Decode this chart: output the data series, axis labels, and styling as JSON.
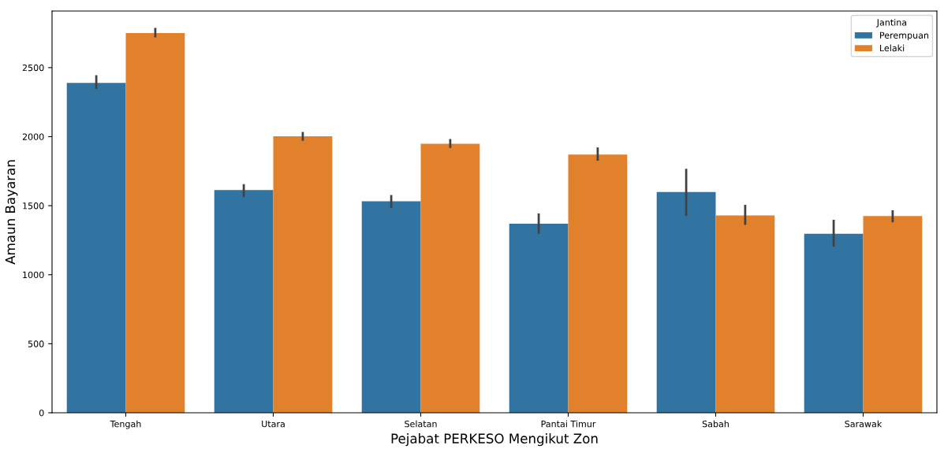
{
  "chart_data": {
    "type": "bar",
    "xlabel": "Pejabat PERKESO Mengikut Zon",
    "ylabel": "Amaun Bayaran",
    "legend_title": "Jantina",
    "categories": [
      "Tengah",
      "Utara",
      "Selatan",
      "Pantai Timur",
      "Sabah",
      "Sarawak"
    ],
    "series": [
      {
        "name": "Perempuan",
        "color": "#3274a1",
        "values": [
          2390,
          1613,
          1532,
          1370,
          1599,
          1296
        ],
        "errors": [
          [
            2346,
            2445
          ],
          [
            1563,
            1656
          ],
          [
            1484,
            1577
          ],
          [
            1297,
            1444
          ],
          [
            1425,
            1767
          ],
          [
            1203,
            1398
          ]
        ]
      },
      {
        "name": "Lelaki",
        "color": "#e1812c",
        "values": [
          2750,
          2003,
          1948,
          1870,
          1429,
          1425
        ],
        "errors": [
          [
            2719,
            2788
          ],
          [
            1970,
            2034
          ],
          [
            1918,
            1983
          ],
          [
            1826,
            1922
          ],
          [
            1361,
            1506
          ],
          [
            1380,
            1467
          ]
        ]
      }
    ],
    "ylim": [
      0,
      2910
    ],
    "yticks": [
      0,
      500,
      1000,
      1500,
      2000,
      2500
    ],
    "grid": false,
    "legend": "top right"
  }
}
